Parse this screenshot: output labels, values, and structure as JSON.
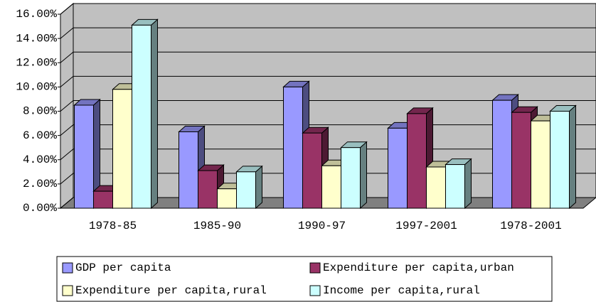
{
  "chart_data": {
    "type": "bar3d",
    "categories": [
      "1978-85",
      "1985-90",
      "1990-97",
      "1997-2001",
      "1978-2001"
    ],
    "series": [
      {
        "name": "GDP per capita",
        "color": "#9999ff",
        "values": [
          8.5,
          6.3,
          10.0,
          6.6,
          8.9
        ]
      },
      {
        "name": "Expenditure per capita,urban",
        "color": "#993366",
        "values": [
          1.4,
          3.1,
          6.2,
          7.8,
          7.9
        ]
      },
      {
        "name": "Expenditure per capita,rural",
        "color": "#ffffcc",
        "values": [
          9.8,
          1.6,
          3.5,
          3.4,
          7.2
        ]
      },
      {
        "name": "Income per capita,rural",
        "color": "#ccffff",
        "values": [
          15.1,
          3.0,
          5.0,
          3.6,
          8.0
        ]
      }
    ],
    "ylim": [
      0,
      16
    ],
    "yticks": [
      {
        "value": 0,
        "label": "0.00%"
      },
      {
        "value": 2,
        "label": "2.00%"
      },
      {
        "value": 4,
        "label": "4.00%"
      },
      {
        "value": 6,
        "label": "6.00%"
      },
      {
        "value": 8,
        "label": "8.00%"
      },
      {
        "value": 10,
        "label": "10.00%"
      },
      {
        "value": 12,
        "label": "12.00%"
      },
      {
        "value": 14,
        "label": "14.00%"
      },
      {
        "value": 16,
        "label": "16.00%"
      }
    ],
    "grid": true,
    "legend": "bottom"
  }
}
